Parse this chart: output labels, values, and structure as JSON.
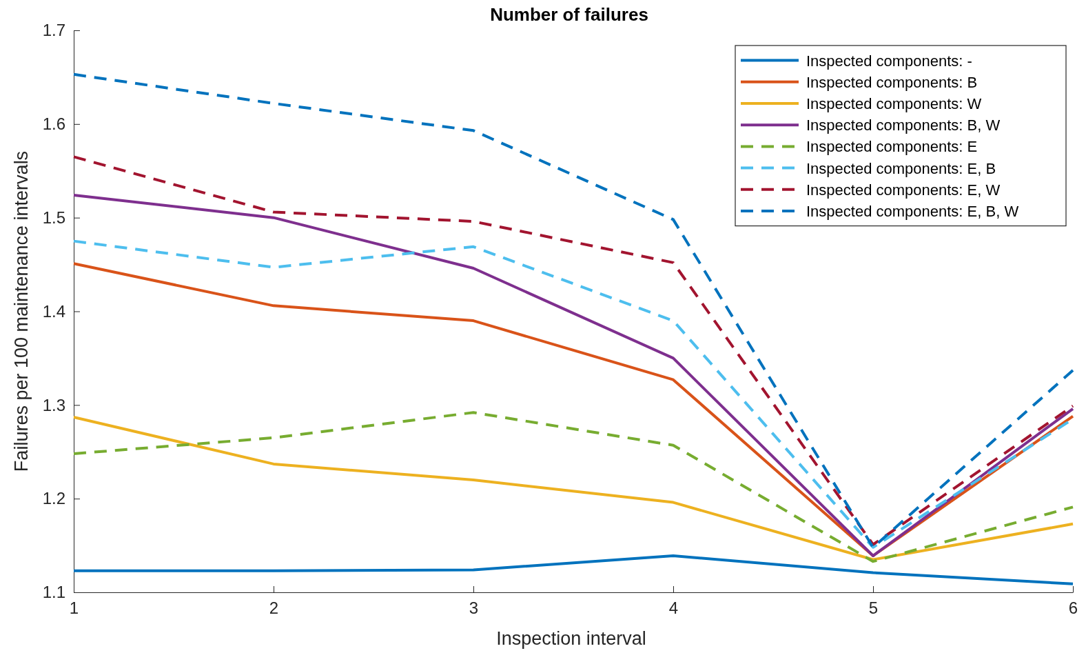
{
  "chart_data": {
    "type": "line",
    "title": "Number of failures",
    "xlabel": "Inspection interval",
    "ylabel": "Failures per 100 maintenance intervals",
    "x": [
      1,
      2,
      3,
      4,
      5,
      6
    ],
    "xlim": [
      1,
      6
    ],
    "xticks": [
      1,
      2,
      3,
      4,
      5,
      6
    ],
    "ylim": [
      1.1,
      1.7
    ],
    "yticks": [
      1.1,
      1.2,
      1.3,
      1.4,
      1.5,
      1.6,
      1.7
    ],
    "grid": false,
    "legend": "top right",
    "marker": "none",
    "series": [
      {
        "name": "Inspected components: -",
        "color": "#0072bd",
        "line_style": "solid",
        "values": [
          1.123,
          1.123,
          1.124,
          1.139,
          1.121,
          1.109
        ]
      },
      {
        "name": "Inspected components: B",
        "color": "#d95319",
        "line_style": "solid",
        "values": [
          1.451,
          1.406,
          1.39,
          1.327,
          1.139,
          1.288
        ]
      },
      {
        "name": "Inspected components: W",
        "color": "#edb120",
        "line_style": "solid",
        "values": [
          1.287,
          1.237,
          1.22,
          1.196,
          1.135,
          1.173
        ]
      },
      {
        "name": "Inspected components: B, W",
        "color": "#7e2f8e",
        "line_style": "solid",
        "values": [
          1.524,
          1.5,
          1.446,
          1.35,
          1.139,
          1.296
        ]
      },
      {
        "name": "Inspected components: E",
        "color": "#77ac30",
        "line_style": "dashed",
        "values": [
          1.248,
          1.265,
          1.292,
          1.257,
          1.133,
          1.191
        ]
      },
      {
        "name": "Inspected components: E, B",
        "color": "#4dbeee",
        "line_style": "dashed",
        "values": [
          1.475,
          1.447,
          1.469,
          1.39,
          1.148,
          1.285
        ]
      },
      {
        "name": "Inspected components: E, W",
        "color": "#a2142f",
        "line_style": "dashed",
        "values": [
          1.565,
          1.506,
          1.496,
          1.452,
          1.151,
          1.299
        ]
      },
      {
        "name": "Inspected components: E, B, W",
        "color": "#0072bd",
        "line_style": "dashed",
        "values": [
          1.653,
          1.622,
          1.593,
          1.498,
          1.148,
          1.337
        ]
      }
    ]
  }
}
